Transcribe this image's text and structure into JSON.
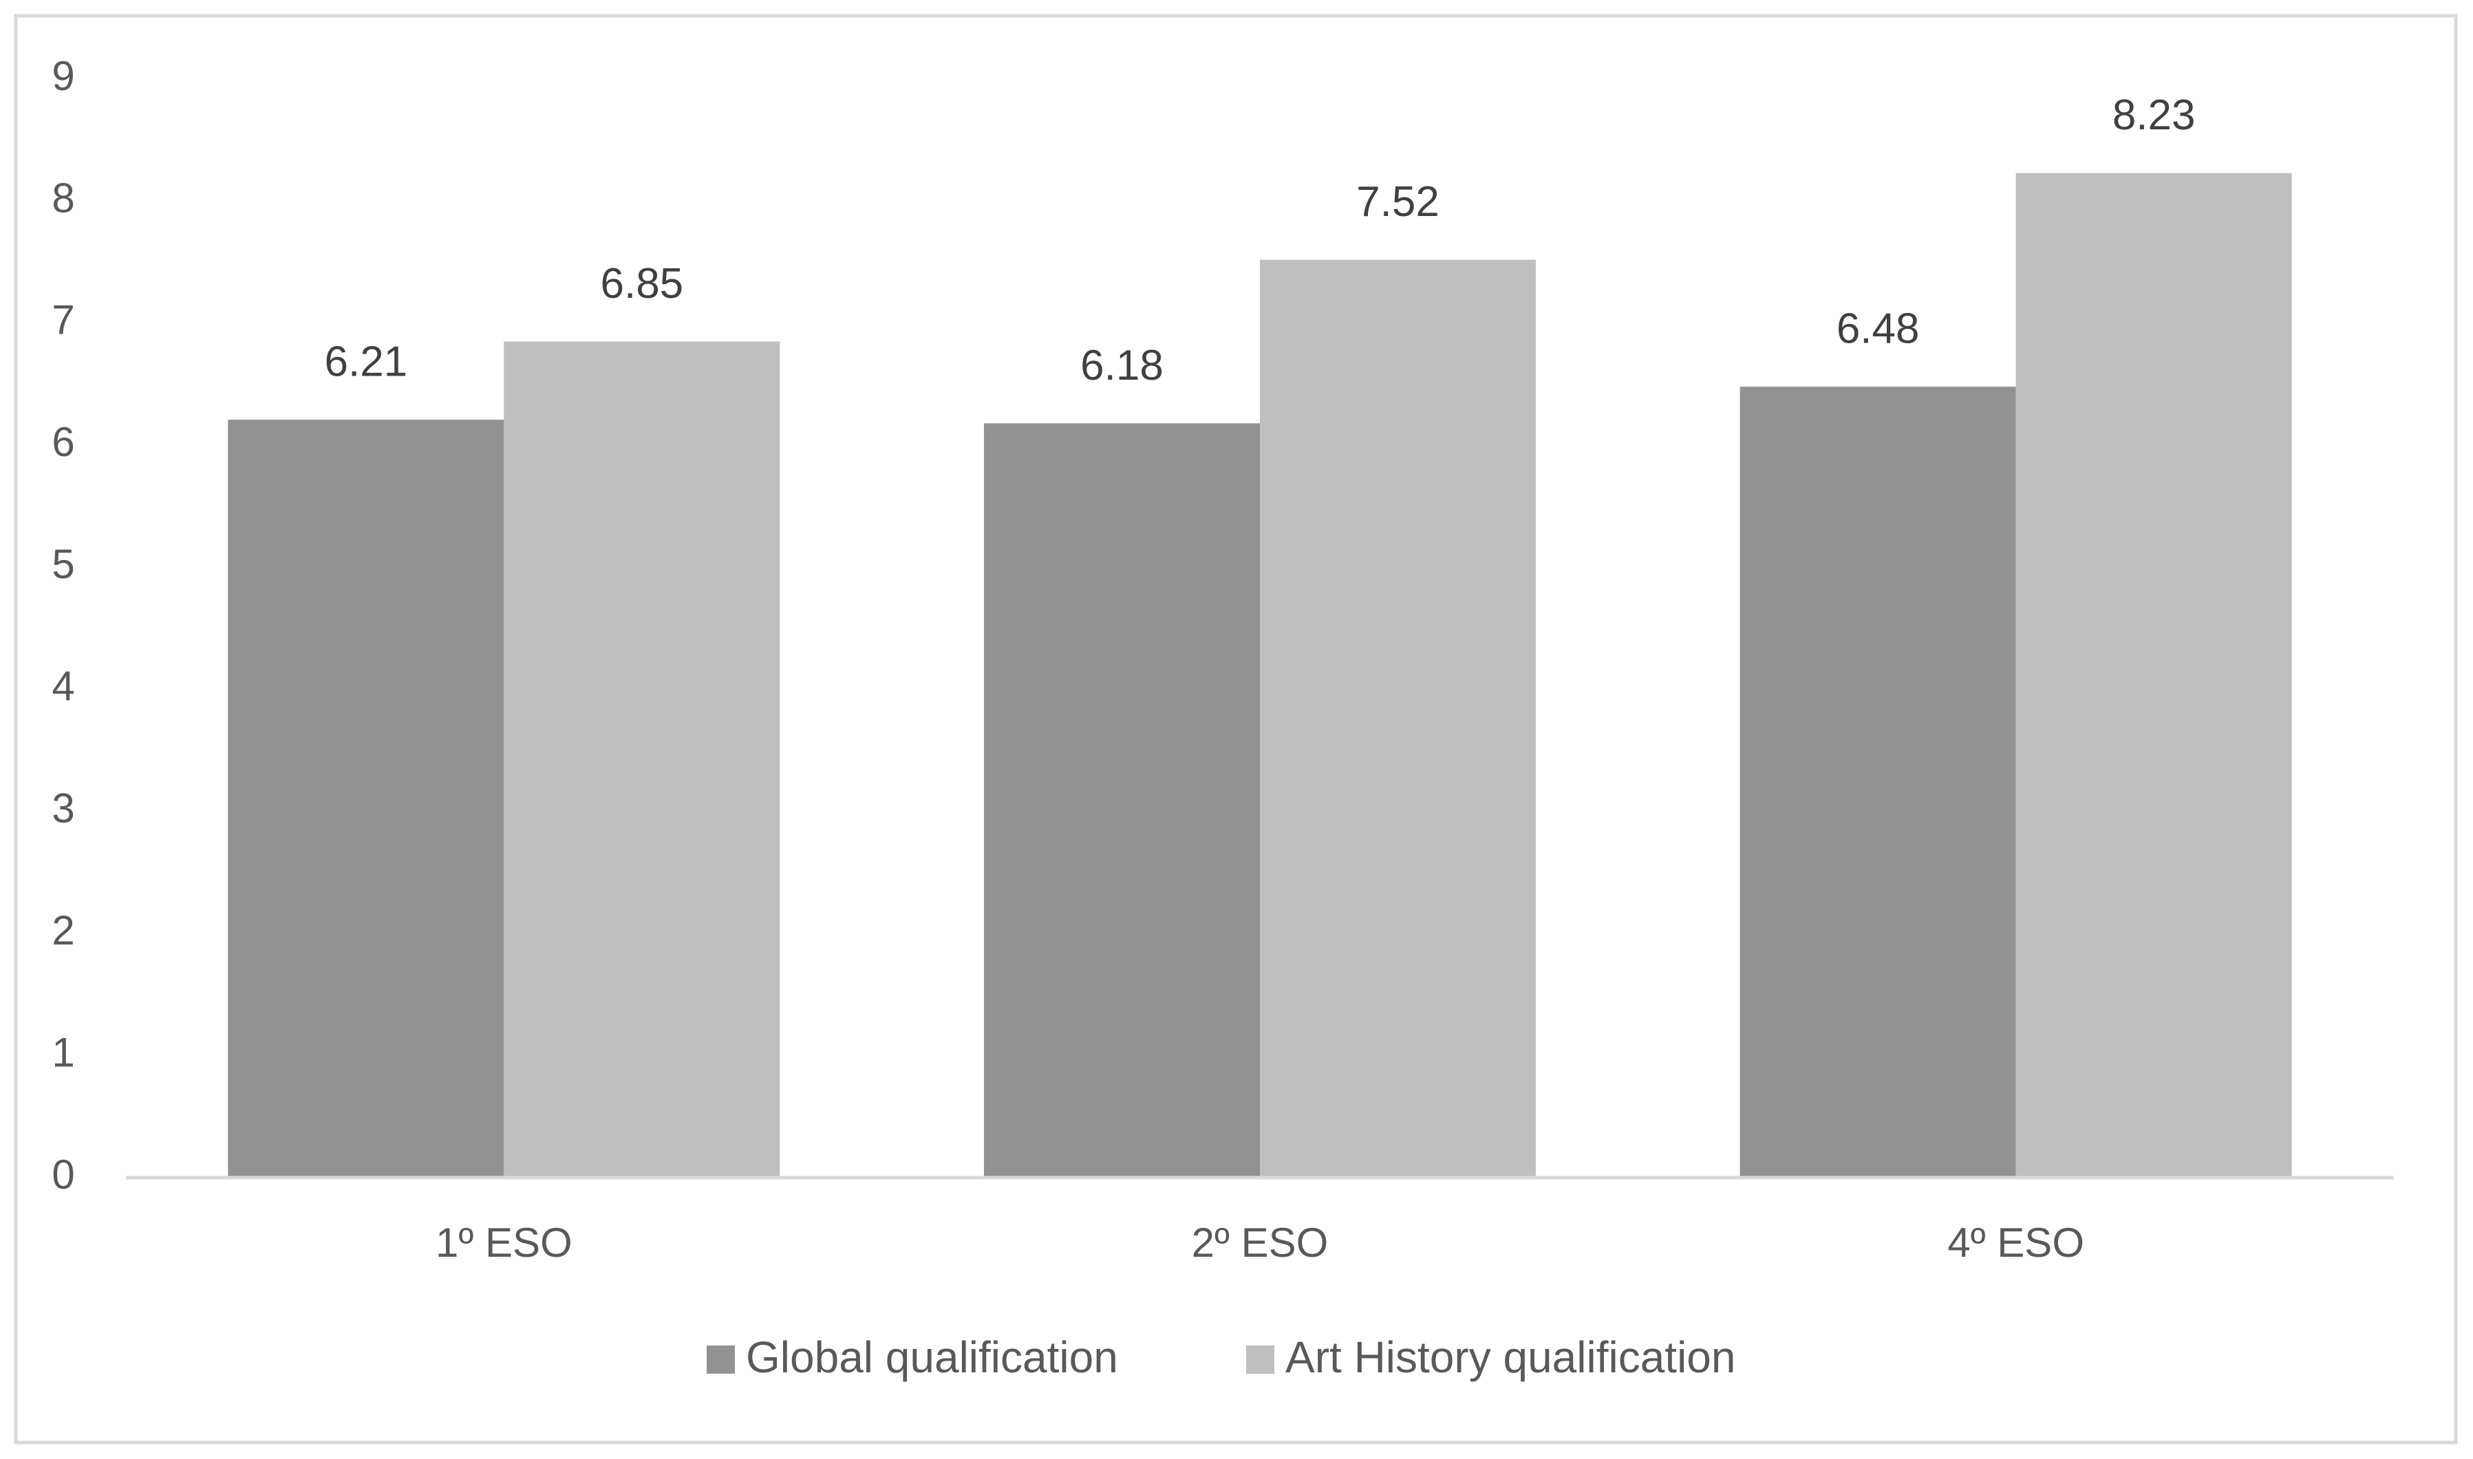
{
  "chart_data": {
    "type": "bar",
    "categories": [
      "1º ESO",
      "2º ESO",
      "4º ESO"
    ],
    "series": [
      {
        "name": "Global qualification",
        "color": "#929292",
        "values": [
          6.21,
          6.18,
          6.48
        ]
      },
      {
        "name": "Art History qualification",
        "color": "#bfbfbf",
        "values": [
          6.85,
          7.52,
          8.23
        ]
      }
    ],
    "ylim": [
      0,
      9
    ],
    "yticks": [
      0,
      1,
      2,
      3,
      4,
      5,
      6,
      7,
      8,
      9
    ],
    "grid": false,
    "legend": "bottom"
  }
}
